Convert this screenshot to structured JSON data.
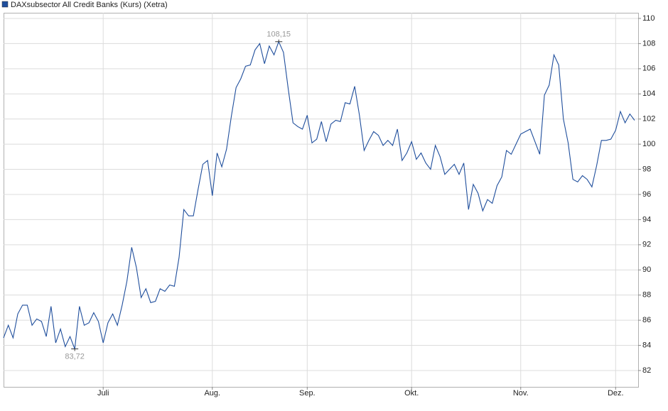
{
  "chart_data": {
    "type": "line",
    "categories": [
      null,
      null,
      null,
      null,
      null,
      null,
      null,
      null,
      null,
      null,
      null,
      null,
      null,
      null,
      null,
      null,
      null,
      null,
      null,
      null,
      null,
      "Juli",
      null,
      null,
      null,
      null,
      null,
      null,
      null,
      null,
      null,
      null,
      null,
      null,
      null,
      null,
      null,
      null,
      null,
      null,
      null,
      null,
      null,
      null,
      "Aug.",
      null,
      null,
      null,
      null,
      null,
      null,
      null,
      null,
      null,
      null,
      null,
      null,
      null,
      null,
      null,
      null,
      null,
      null,
      null,
      "Sep.",
      null,
      null,
      null,
      null,
      null,
      null,
      null,
      null,
      null,
      null,
      null,
      null,
      null,
      null,
      null,
      null,
      null,
      null,
      null,
      null,
      null,
      "Okt.",
      null,
      null,
      null,
      null,
      null,
      null,
      null,
      null,
      null,
      null,
      null,
      null,
      null,
      null,
      null,
      null,
      null,
      null,
      null,
      null,
      null,
      null,
      "Nov.",
      null,
      null,
      null,
      null,
      null,
      null,
      null,
      null,
      null,
      null,
      null,
      null,
      null,
      null,
      null,
      null,
      null,
      null,
      null,
      "Dez.",
      null,
      null,
      null,
      null
    ],
    "series": [
      {
        "name": "DAXsubsector All Credit Banks (Kurs) (Xetra)",
        "color": "#1f4e9c",
        "values": [
          84.6,
          85.6,
          84.6,
          86.5,
          87.2,
          87.2,
          85.6,
          86.1,
          85.9,
          84.7,
          87.1,
          84.2,
          85.3,
          83.9,
          84.7,
          83.72,
          87.1,
          85.6,
          85.8,
          86.6,
          85.9,
          84.2,
          85.8,
          86.5,
          85.6,
          87.2,
          89.1,
          91.8,
          90.2,
          87.8,
          88.5,
          87.4,
          87.5,
          88.5,
          88.3,
          88.8,
          88.7,
          91.0,
          94.8,
          94.3,
          94.3,
          96.4,
          98.4,
          98.7,
          95.9,
          99.3,
          98.2,
          99.6,
          102.2,
          104.5,
          105.2,
          106.2,
          106.3,
          107.5,
          108.0,
          106.4,
          107.8,
          107.1,
          108.15,
          107.3,
          104.4,
          101.7,
          101.4,
          101.2,
          102.3,
          100.1,
          100.4,
          101.8,
          100.2,
          101.6,
          101.9,
          101.8,
          103.3,
          103.2,
          104.6,
          102.3,
          99.5,
          100.3,
          101.0,
          100.7,
          99.9,
          100.3,
          99.9,
          101.2,
          98.7,
          99.3,
          100.2,
          98.8,
          99.3,
          98.5,
          98.0,
          99.9,
          99.0,
          97.6,
          98.0,
          98.4,
          97.6,
          98.5,
          94.8,
          96.8,
          96.1,
          94.7,
          95.6,
          95.3,
          96.7,
          97.4,
          99.5,
          99.2,
          100.0,
          100.8,
          101.0,
          101.2,
          100.2,
          99.2,
          103.9,
          104.7,
          107.1,
          106.3,
          102.0,
          100.1,
          97.2,
          97.0,
          97.5,
          97.2,
          96.6,
          98.3,
          100.3,
          100.3,
          100.4,
          101.1,
          102.6,
          101.7,
          102.4,
          101.9
        ]
      }
    ],
    "annotations": [
      {
        "value": 108.15,
        "label": "108,15"
      },
      {
        "value": 83.72,
        "label": "83,72"
      }
    ],
    "ylim": [
      80.7,
      110.45
    ],
    "yticks": [
      82,
      84,
      86,
      88,
      90,
      92,
      94,
      96,
      98,
      100,
      102,
      104,
      106,
      108,
      110
    ],
    "grid": true
  }
}
